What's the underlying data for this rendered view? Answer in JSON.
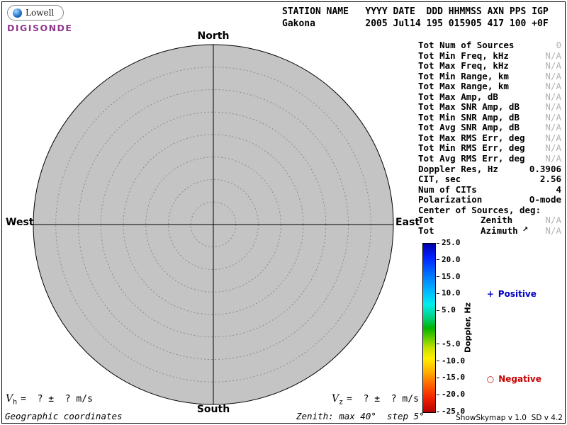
{
  "logo": {
    "brand": "Lowell",
    "product": "DIGISONDE",
    "product_color": "#8e3a8e"
  },
  "header": {
    "line1": "STATION NAME   YYYY DATE  DDD HHMMSS AXN PPS IGP",
    "line2": "Gakona         2005 Jul14 195 015905 417 100 +0F"
  },
  "compass": {
    "north": "North",
    "south": "South",
    "west": "West",
    "east": "East"
  },
  "plot": {
    "fill": "#c4c4c4",
    "ring_color": "#8c8c8c",
    "rings": 8
  },
  "stats": {
    "rows": [
      {
        "label": "Tot Num of Sources",
        "value": "0",
        "dim": true
      },
      {
        "label": "Tot Min Freq, kHz",
        "value": "N/A",
        "dim": true
      },
      {
        "label": "Tot Max Freq, kHz",
        "value": "N/A",
        "dim": true
      },
      {
        "label": "Tot Min Range, km",
        "value": "N/A",
        "dim": true
      },
      {
        "label": "Tot Max Range, km",
        "value": "N/A",
        "dim": true
      },
      {
        "label": "Tot Max Amp, dB",
        "value": "N/A",
        "dim": true
      },
      {
        "label": "Tot Max SNR Amp, dB",
        "value": "N/A",
        "dim": true
      },
      {
        "label": "Tot Min SNR Amp, dB",
        "value": "N/A",
        "dim": true
      },
      {
        "label": "Tot Avg SNR Amp, dB",
        "value": "N/A",
        "dim": true
      },
      {
        "label": "Tot Max RMS Err, deg",
        "value": "N/A",
        "dim": true
      },
      {
        "label": "Tot Min RMS Err, deg",
        "value": "N/A",
        "dim": true
      },
      {
        "label": "Tot Avg RMS Err, deg",
        "value": "N/A",
        "dim": true
      },
      {
        "label": "Doppler Res, Hz",
        "value": "0.3906",
        "dim": false
      },
      {
        "label": "CIT, sec",
        "value": "2.56",
        "dim": false
      },
      {
        "label": "Num of CITs",
        "value": "4",
        "dim": false
      },
      {
        "label": "Polarization",
        "value": "O-mode",
        "dim": false
      },
      {
        "label": "Center of Sources, deg:",
        "value": "",
        "dim": false
      },
      {
        "label": "Tot",
        "mid": "Zenith",
        "value": "N/A",
        "dim": true
      },
      {
        "label": "Tot",
        "mid": "Azimuth",
        "arrow": "↗",
        "value": "N/A",
        "dim": true
      }
    ]
  },
  "colorbar": {
    "title": "Doppler, Hz",
    "min": -25,
    "max": 25,
    "ticks": [
      25.0,
      20.0,
      15.0,
      10.0,
      5.0,
      -5.0,
      -10.0,
      -15.0,
      -20.0,
      -25.0
    ],
    "tick_labels": [
      "25.0",
      "20.0",
      "15.0",
      "10.0",
      "5.0",
      "-5.0",
      "-10.0",
      "-15.0",
      "-20.0",
      "-25.0"
    ],
    "gradient": [
      "#0000a8 0%",
      "#0020ff 8%",
      "#0070ff 18%",
      "#00b8ff 28%",
      "#00eeee 36%",
      "#00d080 44%",
      "#00b400 50%",
      "#60cc00 56%",
      "#c8e000 62%",
      "#ffee00 68%",
      "#ffb000 76%",
      "#ff6000 84%",
      "#f02000 92%",
      "#b40000 100%"
    ]
  },
  "legend": {
    "positive": {
      "marker": "+",
      "label": "Positive",
      "color": "#0000c8"
    },
    "negative": {
      "marker": "○",
      "label": "Negative",
      "color": "#c80000"
    }
  },
  "footer": {
    "vh": {
      "symbol": "V",
      "sub": "h",
      "rest": "=  ? ±  ? m/s"
    },
    "vz": {
      "symbol": "V",
      "sub": "z",
      "rest": "=  ? ±  ? m/s"
    },
    "coords_note": "Geographic coordinates",
    "zenith_note": "Zenith: max 40°  step 5°",
    "version": "ShowSkymap v 1.0  SD v 4.2"
  },
  "colors": {
    "dim_value": "#b2b2b2"
  }
}
